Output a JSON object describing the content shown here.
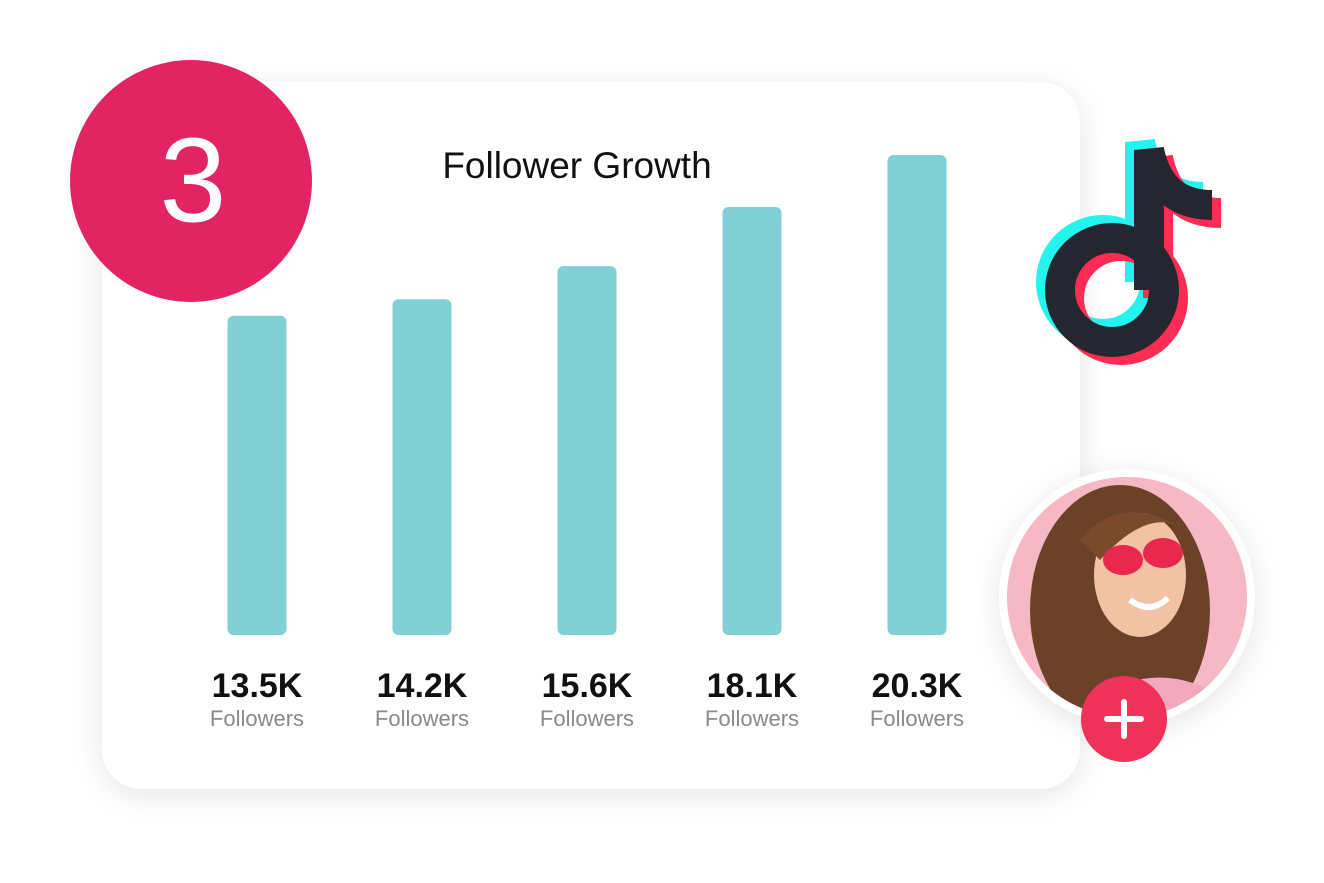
{
  "step_number": "3",
  "chart_data": {
    "type": "bar",
    "title": "Follower Growth",
    "categories": [
      "Followers",
      "Followers",
      "Followers",
      "Followers",
      "Followers"
    ],
    "values": [
      13500,
      14200,
      15600,
      18100,
      20300
    ],
    "value_labels": [
      "13.5K",
      "14.2K",
      "15.6K",
      "18.1K",
      "20.3K"
    ],
    "color": "#82cfd5"
  }
}
